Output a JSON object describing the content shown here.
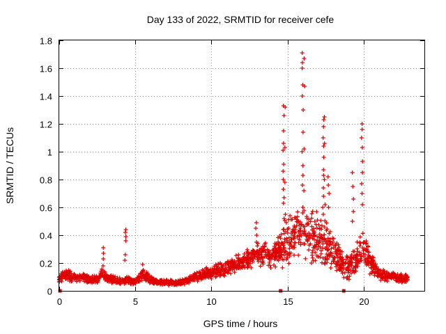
{
  "chart_data": {
    "type": "scatter",
    "title": "Day 133 of 2022, SRMTID for receiver cefe",
    "xlabel": "GPS time / hours",
    "ylabel": "SRMTID / TECUs",
    "xlim": [
      0,
      24
    ],
    "ylim": [
      0,
      1.8
    ],
    "xticks": [
      0,
      5,
      10,
      15,
      20
    ],
    "yticks": [
      0,
      0.2,
      0.4,
      0.6,
      0.8,
      1,
      1.2,
      1.4,
      1.6,
      1.8
    ],
    "xtick_labels": [
      "0",
      "5",
      "10",
      "15",
      "20"
    ],
    "ytick_labels": [
      "0",
      "0.2",
      "0.4",
      "0.6",
      "0.8",
      "1",
      "1.2",
      "1.4",
      "1.6",
      "1.8"
    ],
    "grid": true,
    "marker": "+",
    "series_color": "#e00000",
    "baseline_envelope": {
      "x": [
        0,
        0.5,
        1,
        1.5,
        2,
        2.5,
        2.8,
        3.2,
        3.6,
        4,
        4.5,
        5,
        5.5,
        6,
        6.5,
        7,
        7.5,
        8,
        8.5,
        9,
        9.5,
        10,
        10.5,
        11,
        11.5,
        12,
        12.5,
        13,
        13.5,
        14,
        14.5,
        15,
        15.5,
        16,
        16.5,
        17,
        17.5,
        18,
        18.5,
        19,
        19.5,
        20,
        20.5,
        21,
        21.5,
        22,
        22.5,
        22.9
      ],
      "y": [
        0.1,
        0.12,
        0.09,
        0.1,
        0.08,
        0.08,
        0.13,
        0.09,
        0.08,
        0.07,
        0.08,
        0.06,
        0.12,
        0.08,
        0.06,
        0.06,
        0.06,
        0.06,
        0.08,
        0.1,
        0.12,
        0.13,
        0.15,
        0.16,
        0.19,
        0.21,
        0.23,
        0.27,
        0.28,
        0.25,
        0.3,
        0.37,
        0.4,
        0.42,
        0.38,
        0.37,
        0.35,
        0.28,
        0.2,
        0.17,
        0.22,
        0.3,
        0.2,
        0.12,
        0.11,
        0.1,
        0.09,
        0.09
      ]
    },
    "spikes": [
      {
        "x": 2.9,
        "y": [
          0.18,
          0.23,
          0.27,
          0.31
        ]
      },
      {
        "x": 4.35,
        "y": [
          0.22,
          0.26,
          0.36,
          0.39,
          0.42,
          0.44
        ]
      },
      {
        "x": 5.5,
        "y": [
          0.15,
          0.19
        ]
      },
      {
        "x": 12.95,
        "y": [
          0.35,
          0.4,
          0.45,
          0.49
        ]
      },
      {
        "x": 14.75,
        "y": [
          0.44,
          0.52,
          0.63,
          0.67,
          0.73,
          0.8,
          0.86,
          0.91,
          1.01,
          1.06,
          1.15,
          1.26,
          1.33
        ]
      },
      {
        "x": 14.85,
        "y": [
          0.55,
          0.78,
          1.03,
          1.32
        ]
      },
      {
        "x": 16.0,
        "y": [
          0.56,
          0.6,
          0.76,
          0.83,
          0.9,
          1.0,
          1.14,
          1.3,
          1.4,
          1.48,
          1.6,
          1.64,
          1.71
        ]
      },
      {
        "x": 16.1,
        "y": [
          0.72,
          1.02,
          1.47,
          1.67
        ]
      },
      {
        "x": 17.35,
        "y": [
          0.55,
          0.6,
          0.68,
          0.74,
          0.83,
          0.87,
          0.96,
          1.04,
          1.1,
          1.18,
          1.23
        ]
      },
      {
        "x": 17.45,
        "y": [
          0.62,
          0.8,
          1.06,
          1.25
        ]
      },
      {
        "x": 17.7,
        "y": [
          0.6,
          0.7,
          0.76,
          0.82
        ]
      },
      {
        "x": 19.3,
        "y": [
          0.5,
          0.57,
          0.66,
          0.75,
          0.85
        ]
      },
      {
        "x": 19.9,
        "y": [
          0.62,
          0.7,
          0.77,
          0.85,
          0.93,
          1.03,
          1.1,
          1.16,
          1.2
        ]
      }
    ],
    "gap_markers_x": [
      0.05,
      14.55,
      18.7
    ],
    "point_count": 1800
  }
}
